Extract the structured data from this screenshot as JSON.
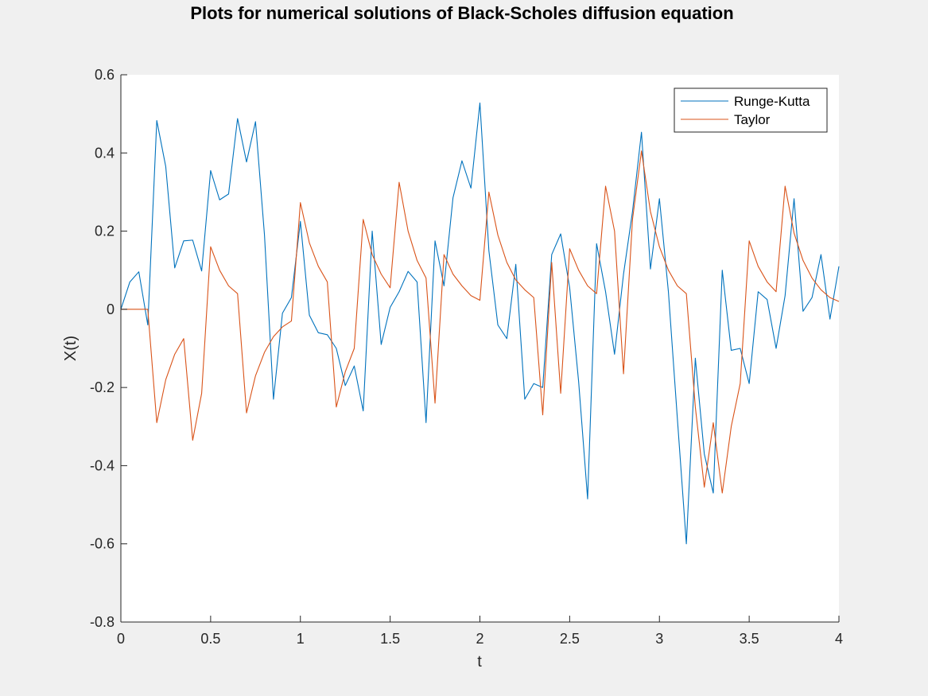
{
  "chart_data": {
    "type": "line",
    "title": "Plots for numerical solutions of Black-Scholes diffusion equation",
    "xlabel": "t",
    "ylabel": "X(t)",
    "xlim": [
      0,
      4
    ],
    "ylim": [
      -0.8,
      0.6
    ],
    "xticks": [
      "0",
      "0.5",
      "1",
      "1.5",
      "2",
      "2.5",
      "3",
      "3.5",
      "4"
    ],
    "yticks": [
      "-0.8",
      "-0.6",
      "-0.4",
      "-0.2",
      "0",
      "0.2",
      "0.4",
      "0.6"
    ],
    "grid": false,
    "legend_position": "top-right",
    "x": [
      0,
      0.05,
      0.1,
      0.15,
      0.2,
      0.25,
      0.3,
      0.35,
      0.4,
      0.45,
      0.5,
      0.55,
      0.6,
      0.65,
      0.7,
      0.75,
      0.8,
      0.85,
      0.9,
      0.95,
      1,
      1.05,
      1.1,
      1.15,
      1.2,
      1.25,
      1.3,
      1.35,
      1.4,
      1.45,
      1.5,
      1.55,
      1.6,
      1.65,
      1.7,
      1.75,
      1.8,
      1.85,
      1.9,
      1.95,
      2,
      2.05,
      2.1,
      2.15,
      2.2,
      2.25,
      2.3,
      2.35,
      2.4,
      2.45,
      2.5,
      2.55,
      2.6,
      2.65,
      2.7,
      2.75,
      2.8,
      2.85,
      2.9,
      2.95,
      3,
      3.05,
      3.1,
      3.15,
      3.2,
      3.25,
      3.3,
      3.35,
      3.4,
      3.45,
      3.5,
      3.55,
      3.6,
      3.65,
      3.7,
      3.75,
      3.8,
      3.85,
      3.9,
      3.95,
      4
    ],
    "series": [
      {
        "name": "Runge-Kutta",
        "color": "#0072bd",
        "values": [
          0,
          0.07,
          0.096,
          -0.04,
          0.483,
          0.365,
          0.106,
          0.175,
          0.177,
          0.098,
          0.355,
          0.28,
          0.295,
          0.488,
          0.377,
          0.48,
          0.19,
          -0.23,
          -0.01,
          0.03,
          0.225,
          -0.015,
          -0.06,
          -0.065,
          -0.1,
          -0.195,
          -0.145,
          -0.26,
          0.2,
          -0.09,
          0.005,
          0.045,
          0.097,
          0.07,
          -0.29,
          0.175,
          0.06,
          0.285,
          0.38,
          0.31,
          0.528,
          0.15,
          -0.04,
          -0.075,
          0.115,
          -0.23,
          -0.19,
          -0.2,
          0.14,
          0.193,
          0.055,
          -0.185,
          -0.485,
          0.168,
          0.045,
          -0.115,
          0.09,
          0.25,
          0.453,
          0.103,
          0.283,
          0.045,
          -0.28,
          -0.6,
          -0.125,
          -0.37,
          -0.47,
          0.1,
          -0.105,
          -0.1,
          -0.19,
          0.045,
          0.025,
          -0.1,
          0.035,
          0.283,
          -0.005,
          0.03,
          0.14,
          -0.025,
          0.11
        ]
      },
      {
        "name": "Taylor",
        "color": "#d95319",
        "values": [
          0,
          0,
          0,
          0,
          -0.29,
          -0.18,
          -0.115,
          -0.075,
          -0.335,
          -0.215,
          0.16,
          0.1,
          0.06,
          0.04,
          -0.265,
          -0.17,
          -0.11,
          -0.07,
          -0.045,
          -0.03,
          0.273,
          0.17,
          0.11,
          0.07,
          -0.25,
          -0.16,
          -0.1,
          0.23,
          0.14,
          0.09,
          0.055,
          0.325,
          0.2,
          0.125,
          0.08,
          -0.24,
          0.14,
          0.09,
          0.06,
          0.035,
          0.023,
          0.3,
          0.19,
          0.12,
          0.075,
          0.05,
          0.03,
          -0.27,
          0.12,
          -0.215,
          0.155,
          0.1,
          0.06,
          0.04,
          0.315,
          0.2,
          -0.165,
          0.23,
          0.405,
          0.25,
          0.16,
          0.1,
          0.06,
          0.04,
          -0.25,
          -0.455,
          -0.29,
          -0.47,
          -0.3,
          -0.19,
          0.175,
          0.11,
          0.07,
          0.045,
          0.315,
          0.195,
          0.125,
          0.08,
          0.05,
          0.03,
          0.02
        ]
      }
    ]
  }
}
